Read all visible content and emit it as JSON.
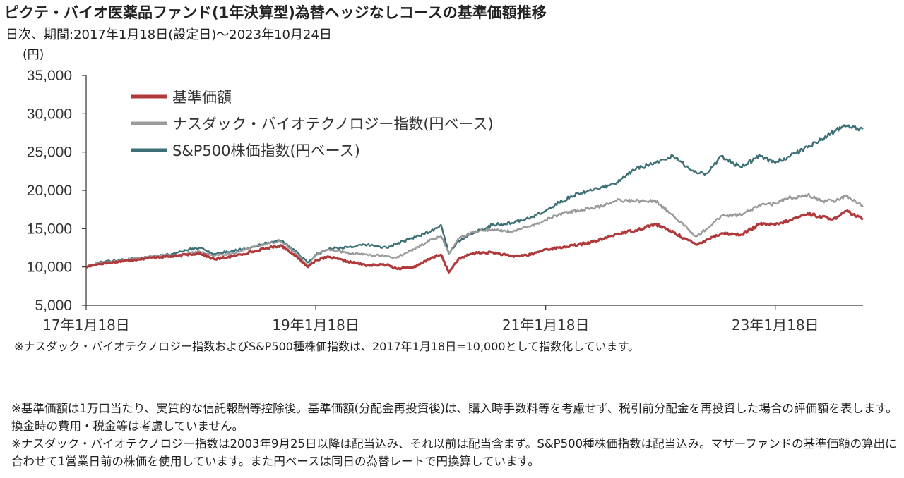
{
  "title": "ピクテ・バイオ医薬品ファンド(1年決算型)為替ヘッジなしコースの基準価額推移",
  "subtitle": "日次、期間:2017年1月18日(設定日)〜2023年10月24日",
  "note_index": "※ナスダック・バイオテクノロジー指数およびS&P500種株価指数は、2017年1月18日=10,000として指数化しています。",
  "notes": [
    "※基準価額は1万口当たり、実質的な信託報酬等控除後。基準価額(分配金再投資後)は、購入時手数料等を考慮せず、税引前分配金を再投資した場合の評価額を表します。換金時の費用・税金等は考慮していません。",
    "※ナスダック・バイオテクノロジー指数は2003年9月25日以降は配当込み、それ以前は配当含まず。S&P500種株価指数は配当込み。マザーファンドの基準価額の算出に合わせて1営業日前の株価を使用しています。また円ベースは同日の為替レートで円換算しています。"
  ],
  "chart_data": {
    "type": "line",
    "ylabel": "(円)",
    "ylim": [
      5000,
      35000
    ],
    "yticks": [
      5000,
      10000,
      15000,
      20000,
      25000,
      30000,
      35000
    ],
    "ytick_labels": [
      "5,000",
      "10,000",
      "15,000",
      "20,000",
      "25,000",
      "30,000",
      "35,000"
    ],
    "xlim": [
      "2017-01-18",
      "2023-10-24"
    ],
    "xticks": [
      "2017-01-18",
      "2019-01-18",
      "2021-01-18",
      "2023-01-18"
    ],
    "xtick_labels": [
      "17年1月18日",
      "19年1月18日",
      "21年1月18日",
      "23年1月18日"
    ],
    "grid": false,
    "legend_position": "top-left",
    "series": [
      {
        "name": "基準価額",
        "color": "#b0393b",
        "x": [
          "2017-01-18",
          "2017-03-01",
          "2017-05-01",
          "2017-07-01",
          "2017-09-01",
          "2017-11-01",
          "2017-12-01",
          "2018-01-15",
          "2018-03-01",
          "2018-05-01",
          "2018-07-01",
          "2018-09-01",
          "2018-10-01",
          "2018-11-01",
          "2018-12-25",
          "2019-01-18",
          "2019-03-01",
          "2019-05-01",
          "2019-07-01",
          "2019-09-01",
          "2019-10-01",
          "2019-12-01",
          "2020-01-20",
          "2020-02-20",
          "2020-03-16",
          "2020-04-15",
          "2020-06-01",
          "2020-08-01",
          "2020-10-01",
          "2020-12-01",
          "2021-01-18",
          "2021-03-01",
          "2021-05-01",
          "2021-07-01",
          "2021-09-01",
          "2021-11-01",
          "2022-01-01",
          "2022-03-01",
          "2022-05-12",
          "2022-06-15",
          "2022-08-01",
          "2022-10-01",
          "2022-12-01",
          "2023-01-18",
          "2023-03-01",
          "2023-05-01",
          "2023-06-15",
          "2023-07-31",
          "2023-09-01",
          "2023-10-24"
        ],
        "values": [
          10000,
          10400,
          10700,
          11000,
          11300,
          11400,
          11600,
          11800,
          11000,
          11400,
          12000,
          12600,
          12800,
          11900,
          10000,
          10900,
          11300,
          10700,
          10200,
          10300,
          9800,
          10000,
          11200,
          11600,
          9300,
          11000,
          11800,
          11900,
          11400,
          11600,
          12300,
          12500,
          12900,
          13400,
          14300,
          14800,
          15600,
          14500,
          12900,
          13600,
          14400,
          14200,
          15600,
          15500,
          16000,
          17000,
          16500,
          16300,
          17300,
          16200
        ]
      },
      {
        "name": "ナスダック・バイオテクノロジー指数(円ベース)",
        "color": "#9a9a9a",
        "x": [
          "2017-01-18",
          "2017-03-01",
          "2017-05-01",
          "2017-07-01",
          "2017-09-01",
          "2017-11-01",
          "2017-12-01",
          "2018-01-15",
          "2018-03-01",
          "2018-05-01",
          "2018-07-01",
          "2018-09-01",
          "2018-10-01",
          "2018-11-01",
          "2018-12-25",
          "2019-01-18",
          "2019-03-01",
          "2019-05-01",
          "2019-07-01",
          "2019-09-01",
          "2019-10-01",
          "2019-12-01",
          "2020-01-20",
          "2020-02-20",
          "2020-03-16",
          "2020-04-15",
          "2020-06-01",
          "2020-08-01",
          "2020-10-01",
          "2020-12-01",
          "2021-01-18",
          "2021-03-01",
          "2021-05-01",
          "2021-07-01",
          "2021-09-01",
          "2021-11-01",
          "2022-01-01",
          "2022-03-01",
          "2022-05-12",
          "2022-06-15",
          "2022-08-01",
          "2022-10-01",
          "2022-12-01",
          "2023-01-18",
          "2023-03-01",
          "2023-05-01",
          "2023-06-15",
          "2023-07-31",
          "2023-09-01",
          "2023-10-24"
        ],
        "values": [
          10000,
          10500,
          10800,
          11200,
          11500,
          11600,
          11700,
          12000,
          11500,
          11800,
          12600,
          13200,
          13300,
          12300,
          10200,
          11600,
          12300,
          11800,
          11600,
          11400,
          11200,
          12400,
          13600,
          14000,
          11700,
          13700,
          14600,
          14900,
          14600,
          15300,
          16100,
          16900,
          17400,
          17800,
          18700,
          18600,
          18700,
          16600,
          14000,
          15000,
          16700,
          16800,
          18000,
          18300,
          19000,
          19400,
          18600,
          18700,
          19300,
          18000
        ]
      },
      {
        "name": "S&P500株価指数(円ベース)",
        "color": "#3d7076",
        "x": [
          "2017-01-18",
          "2017-03-01",
          "2017-05-01",
          "2017-07-01",
          "2017-09-01",
          "2017-11-01",
          "2017-12-01",
          "2018-01-15",
          "2018-03-01",
          "2018-05-01",
          "2018-07-01",
          "2018-09-01",
          "2018-10-01",
          "2018-11-01",
          "2018-12-25",
          "2019-01-18",
          "2019-03-01",
          "2019-05-01",
          "2019-07-01",
          "2019-09-01",
          "2019-10-01",
          "2019-12-01",
          "2020-01-20",
          "2020-02-20",
          "2020-03-16",
          "2020-04-15",
          "2020-06-01",
          "2020-08-01",
          "2020-10-01",
          "2020-12-01",
          "2021-01-18",
          "2021-03-01",
          "2021-05-01",
          "2021-07-01",
          "2021-09-01",
          "2021-11-01",
          "2022-01-01",
          "2022-03-01",
          "2022-05-12",
          "2022-06-15",
          "2022-08-01",
          "2022-10-01",
          "2022-12-01",
          "2023-01-18",
          "2023-03-01",
          "2023-05-01",
          "2023-06-15",
          "2023-07-31",
          "2023-09-01",
          "2023-10-24"
        ],
        "values": [
          10000,
          10600,
          10900,
          11100,
          11400,
          11800,
          12200,
          12500,
          11700,
          12100,
          12600,
          13300,
          13400,
          12500,
          10600,
          11600,
          12400,
          12600,
          12900,
          12500,
          13000,
          13900,
          14700,
          15500,
          11800,
          13400,
          14400,
          15500,
          15700,
          16500,
          17300,
          18400,
          19600,
          20200,
          21000,
          22800,
          23600,
          24400,
          22300,
          22200,
          24500,
          23000,
          24500,
          23600,
          24400,
          25600,
          26700,
          27900,
          28400,
          28000
        ]
      }
    ]
  }
}
